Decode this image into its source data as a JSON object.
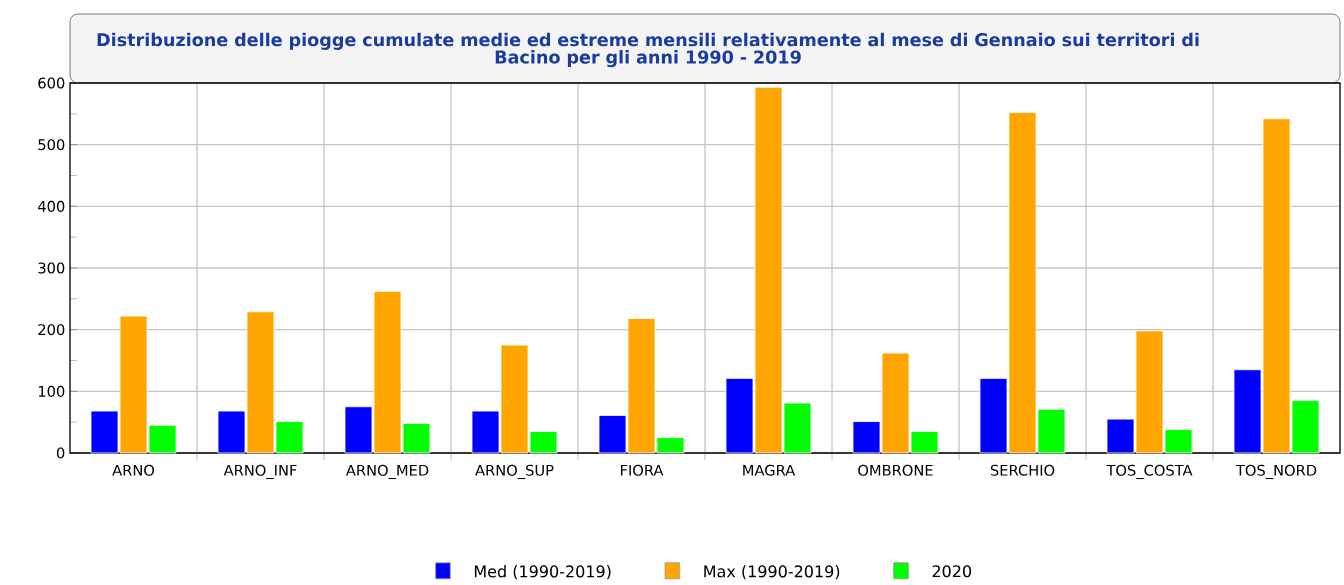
{
  "chart_data": {
    "type": "bar",
    "title": "Distribuzione delle piogge cumulate medie ed estreme mensili relativamente al mese di Gennaio sui territori di Bacino per gli anni 1990 - 2019",
    "categories": [
      "ARNO",
      "ARNO_INF",
      "ARNO_MED",
      "ARNO_SUP",
      "FIORA",
      "MAGRA",
      "OMBRONE",
      "SERCHIO",
      "TOS_COSTA",
      "TOS_NORD"
    ],
    "series": [
      {
        "name": "Med (1990-2019)",
        "color": "#0000ff",
        "values": [
          68,
          68,
          75,
          68,
          61,
          121,
          51,
          121,
          55,
          135
        ]
      },
      {
        "name": "Max (1990-2019)",
        "color": "#ffa500",
        "values": [
          222,
          229,
          262,
          175,
          218,
          593,
          162,
          552,
          198,
          542
        ]
      },
      {
        "name": "2020",
        "color": "#00ff00",
        "values": [
          45,
          51,
          48,
          35,
          25,
          81,
          35,
          71,
          38,
          85
        ]
      }
    ],
    "ylim": [
      0,
      600
    ],
    "yticks": [
      0,
      100,
      200,
      300,
      400,
      500,
      600
    ],
    "grid": true,
    "legend": "bottom"
  }
}
